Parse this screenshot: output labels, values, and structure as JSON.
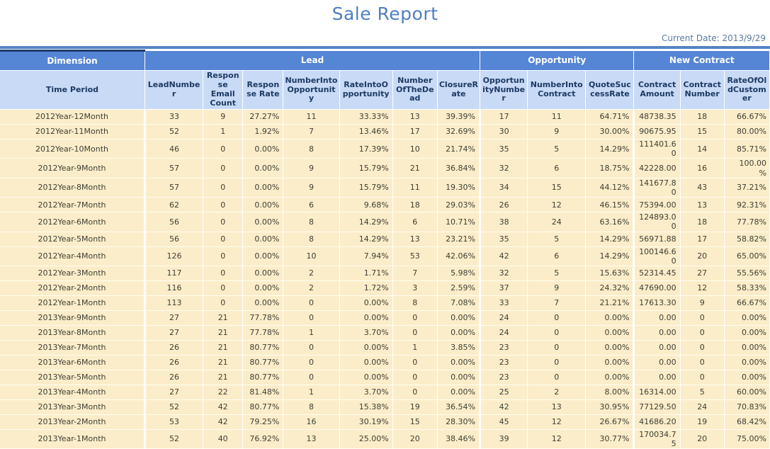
{
  "title": "Sale Report",
  "current_date_label": "Current Date: 2013/9/29",
  "colors": {
    "title-blue": "#4e7fc0",
    "date-blue": "#5a7ca3",
    "line-blue": "#5583c4",
    "group-blue": "#5585d5",
    "colhead-blue": "#c8daf5",
    "colhead-text": "#1c3a64",
    "row-cream": "#fbedc9",
    "data-text": "#3e3e35",
    "dim-dark": "#1e3c6e"
  },
  "table": {
    "groups": [
      {
        "label": "Dimension",
        "span": 1
      },
      {
        "label": "Lead",
        "span": 7
      },
      {
        "label": "Opportunity",
        "span": 3
      },
      {
        "label": "New Contract",
        "span": 3
      }
    ],
    "columns": [
      "Time Period",
      "LeadNumber",
      "Response Email Count",
      "Response Rate",
      "NumberIntoOpportunity",
      "RateIntoOpportunity",
      "NumberOfTheDead",
      "ClosureRate",
      "OpportunityNumber",
      "NumberIntoContract",
      "QuoteSuccessRate",
      "ContractAmount",
      "ContractNumber",
      "RateOfOldCustomer"
    ],
    "rows": [
      [
        "2012Year-12Month",
        "33",
        "9",
        "27.27%",
        "11",
        "33.33%",
        "13",
        "39.39%",
        "17",
        "11",
        "64.71%",
        "48738.35",
        "18",
        "66.67%"
      ],
      [
        "2012Year-11Month",
        "52",
        "1",
        "1.92%",
        "7",
        "13.46%",
        "17",
        "32.69%",
        "30",
        "9",
        "30.00%",
        "90675.95",
        "15",
        "80.00%"
      ],
      [
        "2012Year-10Month",
        "46",
        "0",
        "0.00%",
        "8",
        "17.39%",
        "10",
        "21.74%",
        "35",
        "5",
        "14.29%",
        "111401.60",
        "14",
        "85.71%"
      ],
      [
        "2012Year-9Month",
        "57",
        "0",
        "0.00%",
        "9",
        "15.79%",
        "21",
        "36.84%",
        "32",
        "6",
        "18.75%",
        "42228.00",
        "16",
        "100.00%"
      ],
      [
        "2012Year-8Month",
        "57",
        "0",
        "0.00%",
        "9",
        "15.79%",
        "11",
        "19.30%",
        "34",
        "15",
        "44.12%",
        "141677.80",
        "43",
        "37.21%"
      ],
      [
        "2012Year-7Month",
        "62",
        "0",
        "0.00%",
        "6",
        "9.68%",
        "18",
        "29.03%",
        "26",
        "12",
        "46.15%",
        "75394.00",
        "13",
        "92.31%"
      ],
      [
        "2012Year-6Month",
        "56",
        "0",
        "0.00%",
        "8",
        "14.29%",
        "6",
        "10.71%",
        "38",
        "24",
        "63.16%",
        "124893.00",
        "18",
        "77.78%"
      ],
      [
        "2012Year-5Month",
        "56",
        "0",
        "0.00%",
        "8",
        "14.29%",
        "13",
        "23.21%",
        "35",
        "5",
        "14.29%",
        "56971.88",
        "17",
        "58.82%"
      ],
      [
        "2012Year-4Month",
        "126",
        "0",
        "0.00%",
        "10",
        "7.94%",
        "53",
        "42.06%",
        "42",
        "6",
        "14.29%",
        "100146.60",
        "20",
        "65.00%"
      ],
      [
        "2012Year-3Month",
        "117",
        "0",
        "0.00%",
        "2",
        "1.71%",
        "7",
        "5.98%",
        "32",
        "5",
        "15.63%",
        "52314.45",
        "27",
        "55.56%"
      ],
      [
        "2012Year-2Month",
        "116",
        "0",
        "0.00%",
        "2",
        "1.72%",
        "3",
        "2.59%",
        "37",
        "9",
        "24.32%",
        "47690.00",
        "12",
        "58.33%"
      ],
      [
        "2012Year-1Month",
        "113",
        "0",
        "0.00%",
        "0",
        "0.00%",
        "8",
        "7.08%",
        "33",
        "7",
        "21.21%",
        "17613.30",
        "9",
        "66.67%"
      ],
      [
        "2013Year-9Month",
        "27",
        "21",
        "77.78%",
        "0",
        "0.00%",
        "0",
        "0.00%",
        "24",
        "0",
        "0.00%",
        "0.00",
        "0",
        "0.00%"
      ],
      [
        "2013Year-8Month",
        "27",
        "21",
        "77.78%",
        "1",
        "3.70%",
        "0",
        "0.00%",
        "24",
        "0",
        "0.00%",
        "0.00",
        "0",
        "0.00%"
      ],
      [
        "2013Year-7Month",
        "26",
        "21",
        "80.77%",
        "0",
        "0.00%",
        "1",
        "3.85%",
        "23",
        "0",
        "0.00%",
        "0.00",
        "0",
        "0.00%"
      ],
      [
        "2013Year-6Month",
        "26",
        "21",
        "80.77%",
        "0",
        "0.00%",
        "0",
        "0.00%",
        "23",
        "0",
        "0.00%",
        "0.00",
        "0",
        "0.00%"
      ],
      [
        "2013Year-5Month",
        "26",
        "21",
        "80.77%",
        "0",
        "0.00%",
        "0",
        "0.00%",
        "23",
        "0",
        "0.00%",
        "0.00",
        "0",
        "0.00%"
      ],
      [
        "2013Year-4Month",
        "27",
        "22",
        "81.48%",
        "1",
        "3.70%",
        "0",
        "0.00%",
        "25",
        "2",
        "8.00%",
        "16314.00",
        "5",
        "60.00%"
      ],
      [
        "2013Year-3Month",
        "52",
        "42",
        "80.77%",
        "8",
        "15.38%",
        "19",
        "36.54%",
        "42",
        "13",
        "30.95%",
        "77129.50",
        "24",
        "70.83%"
      ],
      [
        "2013Year-2Month",
        "53",
        "42",
        "79.25%",
        "16",
        "30.19%",
        "15",
        "28.30%",
        "45",
        "12",
        "26.67%",
        "41686.20",
        "19",
        "68.42%"
      ],
      [
        "2013Year-1Month",
        "52",
        "40",
        "76.92%",
        "13",
        "25.00%",
        "20",
        "38.46%",
        "39",
        "12",
        "30.77%",
        "170034.75",
        "20",
        "75.00%"
      ]
    ]
  }
}
